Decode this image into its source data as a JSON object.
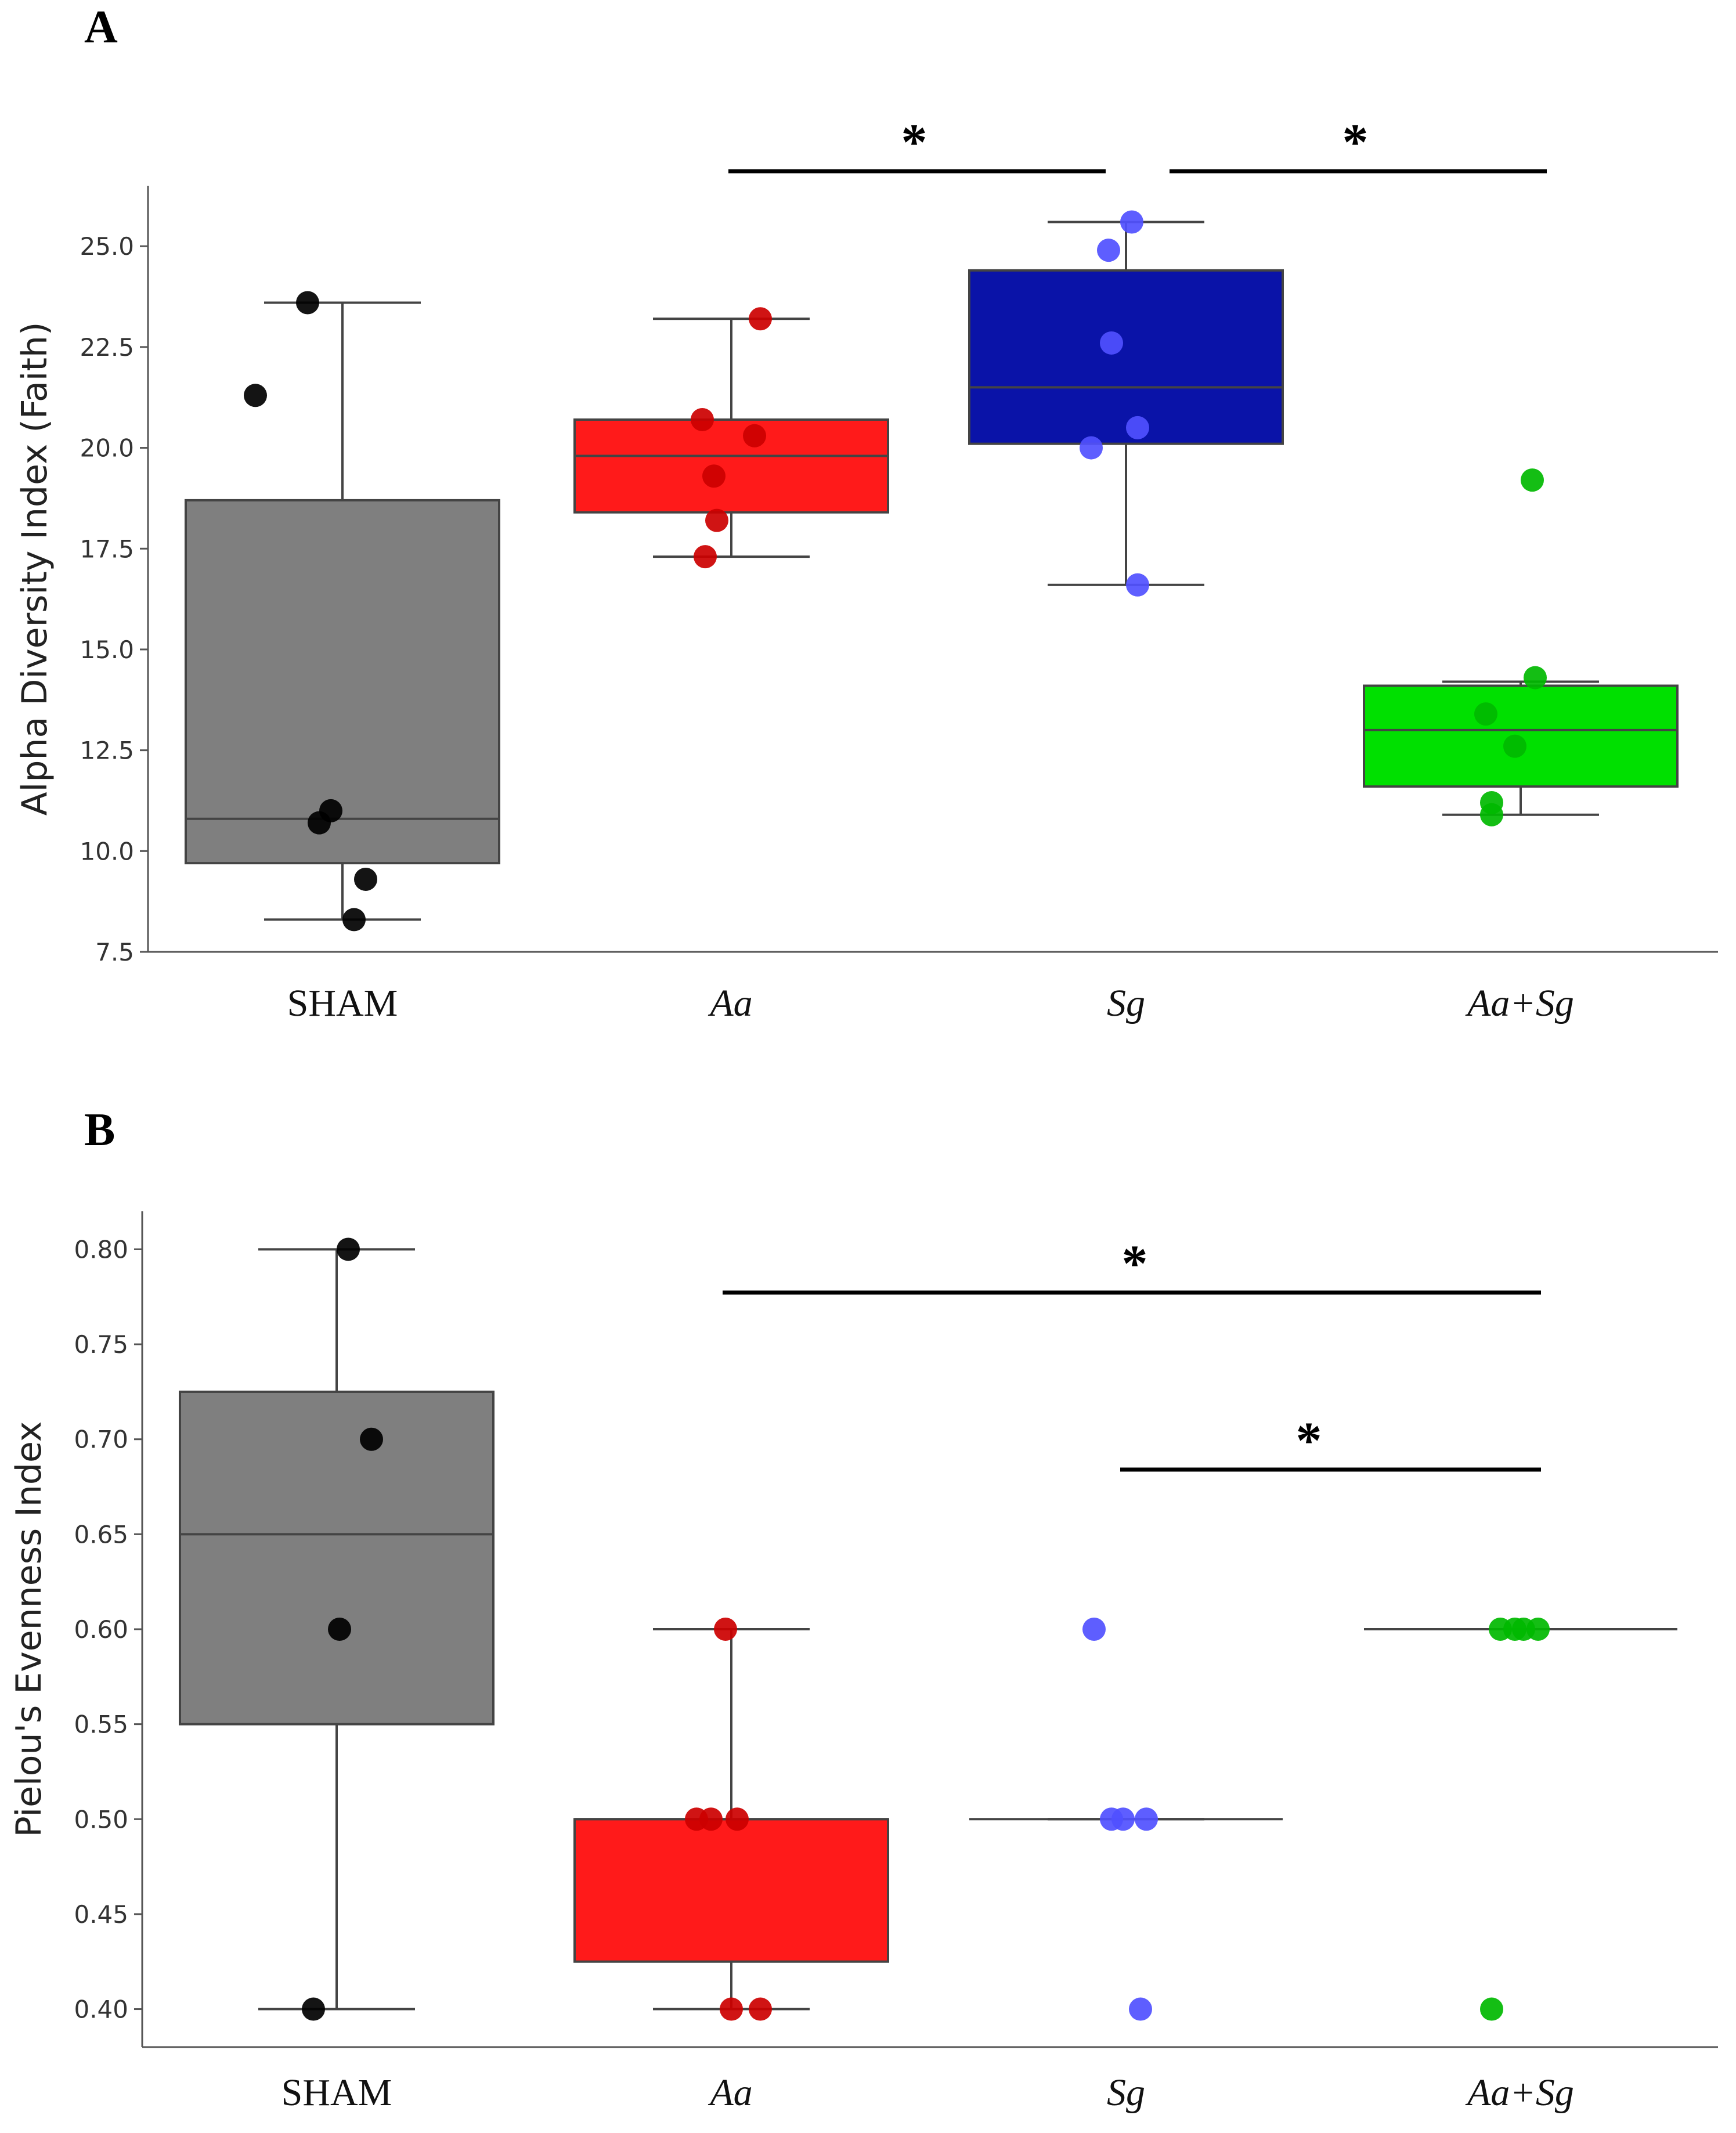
{
  "chart_data": [
    {
      "panel": "A",
      "type": "box",
      "ylabel": "Alpha Diversity Index (Faith)",
      "ylim": [
        7.5,
        26.5
      ],
      "yticks": [
        "7.5",
        "10.0",
        "12.5",
        "15.0",
        "17.5",
        "20.0",
        "22.5",
        "25.0"
      ],
      "categories": [
        {
          "label": "SHAM",
          "italic": false,
          "color": "#7f7f7f",
          "point_color": "#000000",
          "whisker_low": 8.3,
          "q1": 9.7,
          "median": 10.8,
          "q3": 18.7,
          "whisker_high": 23.6,
          "points": [
            23.6,
            21.3,
            11.0,
            10.7,
            9.3,
            8.3
          ]
        },
        {
          "label": "Aa",
          "italic": true,
          "color": "#ff1a1a",
          "point_color": "#cc0000",
          "whisker_low": 17.3,
          "q1": 18.4,
          "median": 19.8,
          "q3": 20.7,
          "whisker_high": 23.2,
          "points": [
            23.2,
            20.7,
            20.3,
            19.3,
            18.2,
            17.3
          ]
        },
        {
          "label": "Sg",
          "italic": true,
          "color": "#0a13a8",
          "point_color": "#5050ff",
          "whisker_low": 16.6,
          "q1": 20.1,
          "median": 21.5,
          "q3": 24.4,
          "whisker_high": 25.6,
          "points": [
            25.6,
            24.9,
            22.6,
            20.5,
            20.0,
            16.6
          ]
        },
        {
          "label": "Aa+Sg",
          "italic": true,
          "color": "#00e000",
          "point_color": "#00b800",
          "whisker_low": 10.9,
          "q1": 11.6,
          "median": 13.0,
          "q3": 14.1,
          "whisker_high": 14.2,
          "points": [
            19.2,
            14.3,
            13.4,
            12.6,
            11.2,
            10.9
          ]
        }
      ],
      "significance": [
        {
          "from": "Aa",
          "to": "Sg",
          "label": "*"
        },
        {
          "from": "Sg",
          "to": "Aa+Sg",
          "label": "*"
        }
      ]
    },
    {
      "panel": "B",
      "type": "box",
      "ylabel": "Pielou's Evenness Index",
      "ylim": [
        0.38,
        0.82
      ],
      "yticks": [
        "0.40",
        "0.45",
        "0.50",
        "0.55",
        "0.60",
        "0.65",
        "0.70",
        "0.75",
        "0.80"
      ],
      "categories": [
        {
          "label": "SHAM",
          "italic": false,
          "color": "#7f7f7f",
          "point_color": "#000000",
          "whisker_low": 0.4,
          "q1": 0.55,
          "median": 0.65,
          "q3": 0.725,
          "whisker_high": 0.8,
          "points": [
            0.8,
            0.7,
            0.6,
            0.4
          ]
        },
        {
          "label": "Aa",
          "italic": true,
          "color": "#ff1a1a",
          "point_color": "#cc0000",
          "whisker_low": 0.4,
          "q1": 0.425,
          "median": 0.5,
          "q3": 0.5,
          "whisker_high": 0.6,
          "points": [
            0.6,
            0.5,
            0.5,
            0.5,
            0.4,
            0.4
          ]
        },
        {
          "label": "Sg",
          "italic": true,
          "color": "#0a13a8",
          "point_color": "#5050ff",
          "whisker_low": 0.5,
          "q1": 0.5,
          "median": 0.5,
          "q3": 0.5,
          "whisker_high": 0.5,
          "points": [
            0.6,
            0.5,
            0.5,
            0.5,
            0.4
          ]
        },
        {
          "label": "Aa+Sg",
          "italic": true,
          "color": "#00e000",
          "point_color": "#00b800",
          "whisker_low": 0.6,
          "q1": 0.6,
          "median": 0.6,
          "q3": 0.6,
          "whisker_high": 0.6,
          "points": [
            0.6,
            0.6,
            0.6,
            0.6,
            0.4
          ]
        }
      ],
      "significance": [
        {
          "from": "Aa",
          "to": "Aa+Sg",
          "label": "*"
        },
        {
          "from": "Sg",
          "to": "Aa+Sg",
          "label": "*"
        }
      ]
    }
  ],
  "panels": {
    "a_label": "A",
    "b_label": "B"
  }
}
